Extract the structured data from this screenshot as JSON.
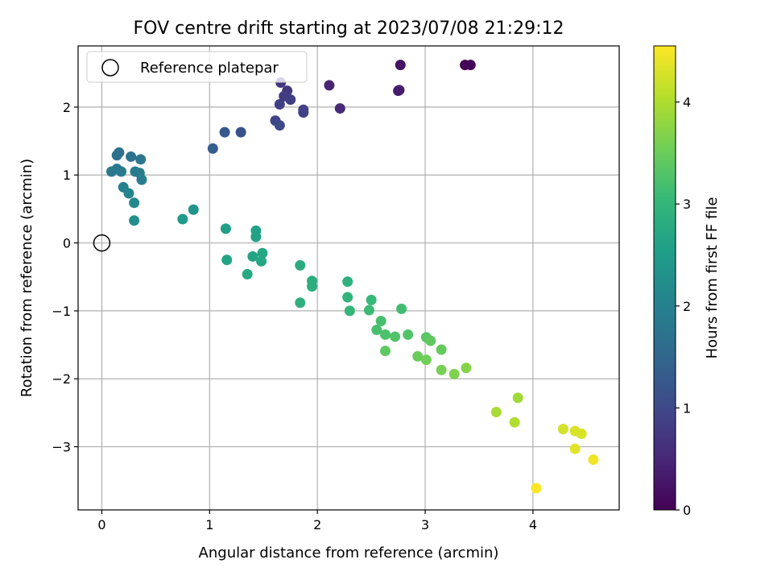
{
  "chart_data": {
    "type": "scatter",
    "title": "FOV centre drift starting at 2023/07/08 21:29:12",
    "xlabel": "Angular distance from reference (arcmin)",
    "ylabel": "Rotation from reference (arcmin)",
    "xlim": [
      -0.22,
      4.8
    ],
    "ylim": [
      -3.93,
      2.9
    ],
    "xticks": [
      0,
      1,
      2,
      3,
      4
    ],
    "yticks": [
      -3,
      -2,
      -1,
      0,
      1,
      2
    ],
    "grid": true,
    "legend": {
      "position": "top-left",
      "entries": [
        "Reference platepar"
      ]
    },
    "reference_point": {
      "x": 0,
      "y": 0
    },
    "colorbar": {
      "label": "Hours from first FF file",
      "colormap": "viridis",
      "min": 0,
      "max": 4.55,
      "ticks": [
        0,
        1,
        2,
        3,
        4
      ]
    },
    "points": [
      {
        "x": 3.37,
        "y": 2.62,
        "c": 0.0
      },
      {
        "x": 3.42,
        "y": 2.62,
        "c": 0.05
      },
      {
        "x": 2.77,
        "y": 2.62,
        "c": 0.22
      },
      {
        "x": 2.75,
        "y": 2.24,
        "c": 0.3
      },
      {
        "x": 2.76,
        "y": 2.25,
        "c": 0.35
      },
      {
        "x": 2.11,
        "y": 2.32,
        "c": 0.45
      },
      {
        "x": 2.21,
        "y": 1.98,
        "c": 0.55
      },
      {
        "x": 1.66,
        "y": 2.36,
        "c": 0.7
      },
      {
        "x": 1.72,
        "y": 2.24,
        "c": 0.75
      },
      {
        "x": 1.69,
        "y": 2.16,
        "c": 0.8
      },
      {
        "x": 1.75,
        "y": 2.11,
        "c": 0.85
      },
      {
        "x": 1.65,
        "y": 2.04,
        "c": 0.85
      },
      {
        "x": 1.87,
        "y": 1.96,
        "c": 0.9
      },
      {
        "x": 1.87,
        "y": 1.92,
        "c": 0.9
      },
      {
        "x": 1.61,
        "y": 1.8,
        "c": 0.95
      },
      {
        "x": 1.65,
        "y": 1.73,
        "c": 1.0
      },
      {
        "x": 1.29,
        "y": 1.63,
        "c": 1.15
      },
      {
        "x": 1.14,
        "y": 1.63,
        "c": 1.25
      },
      {
        "x": 1.03,
        "y": 1.39,
        "c": 1.35
      },
      {
        "x": 0.16,
        "y": 1.33,
        "c": 1.7
      },
      {
        "x": 0.14,
        "y": 1.29,
        "c": 1.7
      },
      {
        "x": 0.27,
        "y": 1.27,
        "c": 1.75
      },
      {
        "x": 0.36,
        "y": 1.23,
        "c": 1.8
      },
      {
        "x": 0.14,
        "y": 1.09,
        "c": 1.8
      },
      {
        "x": 0.09,
        "y": 1.05,
        "c": 1.85
      },
      {
        "x": 0.18,
        "y": 1.05,
        "c": 1.85
      },
      {
        "x": 0.31,
        "y": 1.05,
        "c": 1.9
      },
      {
        "x": 0.35,
        "y": 1.03,
        "c": 1.9
      },
      {
        "x": 0.37,
        "y": 0.93,
        "c": 1.95
      },
      {
        "x": 0.2,
        "y": 0.82,
        "c": 2.0
      },
      {
        "x": 0.25,
        "y": 0.73,
        "c": 2.05
      },
      {
        "x": 0.3,
        "y": 0.59,
        "c": 2.15
      },
      {
        "x": 0.3,
        "y": 0.33,
        "c": 2.25
      },
      {
        "x": 0.85,
        "y": 0.49,
        "c": 2.35
      },
      {
        "x": 0.75,
        "y": 0.35,
        "c": 2.45
      },
      {
        "x": 1.15,
        "y": 0.21,
        "c": 2.55
      },
      {
        "x": 1.43,
        "y": 0.18,
        "c": 2.6
      },
      {
        "x": 1.43,
        "y": 0.09,
        "c": 2.6
      },
      {
        "x": 1.16,
        "y": -0.25,
        "c": 2.65
      },
      {
        "x": 1.4,
        "y": -0.2,
        "c": 2.65
      },
      {
        "x": 1.49,
        "y": -0.15,
        "c": 2.7
      },
      {
        "x": 1.48,
        "y": -0.27,
        "c": 2.7
      },
      {
        "x": 1.35,
        "y": -0.46,
        "c": 2.75
      },
      {
        "x": 1.84,
        "y": -0.33,
        "c": 2.8
      },
      {
        "x": 1.95,
        "y": -0.56,
        "c": 2.85
      },
      {
        "x": 1.95,
        "y": -0.64,
        "c": 2.85
      },
      {
        "x": 2.28,
        "y": -0.57,
        "c": 2.9
      },
      {
        "x": 1.84,
        "y": -0.88,
        "c": 2.9
      },
      {
        "x": 2.28,
        "y": -0.8,
        "c": 2.95
      },
      {
        "x": 2.3,
        "y": -1.0,
        "c": 3.0
      },
      {
        "x": 2.5,
        "y": -0.84,
        "c": 3.05
      },
      {
        "x": 2.48,
        "y": -0.99,
        "c": 3.1
      },
      {
        "x": 2.78,
        "y": -0.97,
        "c": 3.15
      },
      {
        "x": 2.59,
        "y": -1.15,
        "c": 3.2
      },
      {
        "x": 2.55,
        "y": -1.28,
        "c": 3.2
      },
      {
        "x": 2.63,
        "y": -1.35,
        "c": 3.25
      },
      {
        "x": 2.72,
        "y": -1.38,
        "c": 3.3
      },
      {
        "x": 2.84,
        "y": -1.35,
        "c": 3.3
      },
      {
        "x": 3.01,
        "y": -1.39,
        "c": 3.35
      },
      {
        "x": 3.05,
        "y": -1.44,
        "c": 3.4
      },
      {
        "x": 2.63,
        "y": -1.59,
        "c": 3.4
      },
      {
        "x": 3.15,
        "y": -1.57,
        "c": 3.45
      },
      {
        "x": 2.93,
        "y": -1.67,
        "c": 3.5
      },
      {
        "x": 3.01,
        "y": -1.72,
        "c": 3.55
      },
      {
        "x": 3.15,
        "y": -1.87,
        "c": 3.6
      },
      {
        "x": 3.27,
        "y": -1.93,
        "c": 3.65
      },
      {
        "x": 3.38,
        "y": -1.84,
        "c": 3.7
      },
      {
        "x": 3.86,
        "y": -2.28,
        "c": 3.9
      },
      {
        "x": 3.66,
        "y": -2.49,
        "c": 3.95
      },
      {
        "x": 3.83,
        "y": -2.64,
        "c": 4.0
      },
      {
        "x": 4.28,
        "y": -2.74,
        "c": 4.25
      },
      {
        "x": 4.39,
        "y": -2.77,
        "c": 4.3
      },
      {
        "x": 4.45,
        "y": -2.81,
        "c": 4.3
      },
      {
        "x": 4.39,
        "y": -3.03,
        "c": 4.35
      },
      {
        "x": 4.56,
        "y": -3.19,
        "c": 4.45
      },
      {
        "x": 4.03,
        "y": -3.61,
        "c": 4.55
      }
    ]
  }
}
